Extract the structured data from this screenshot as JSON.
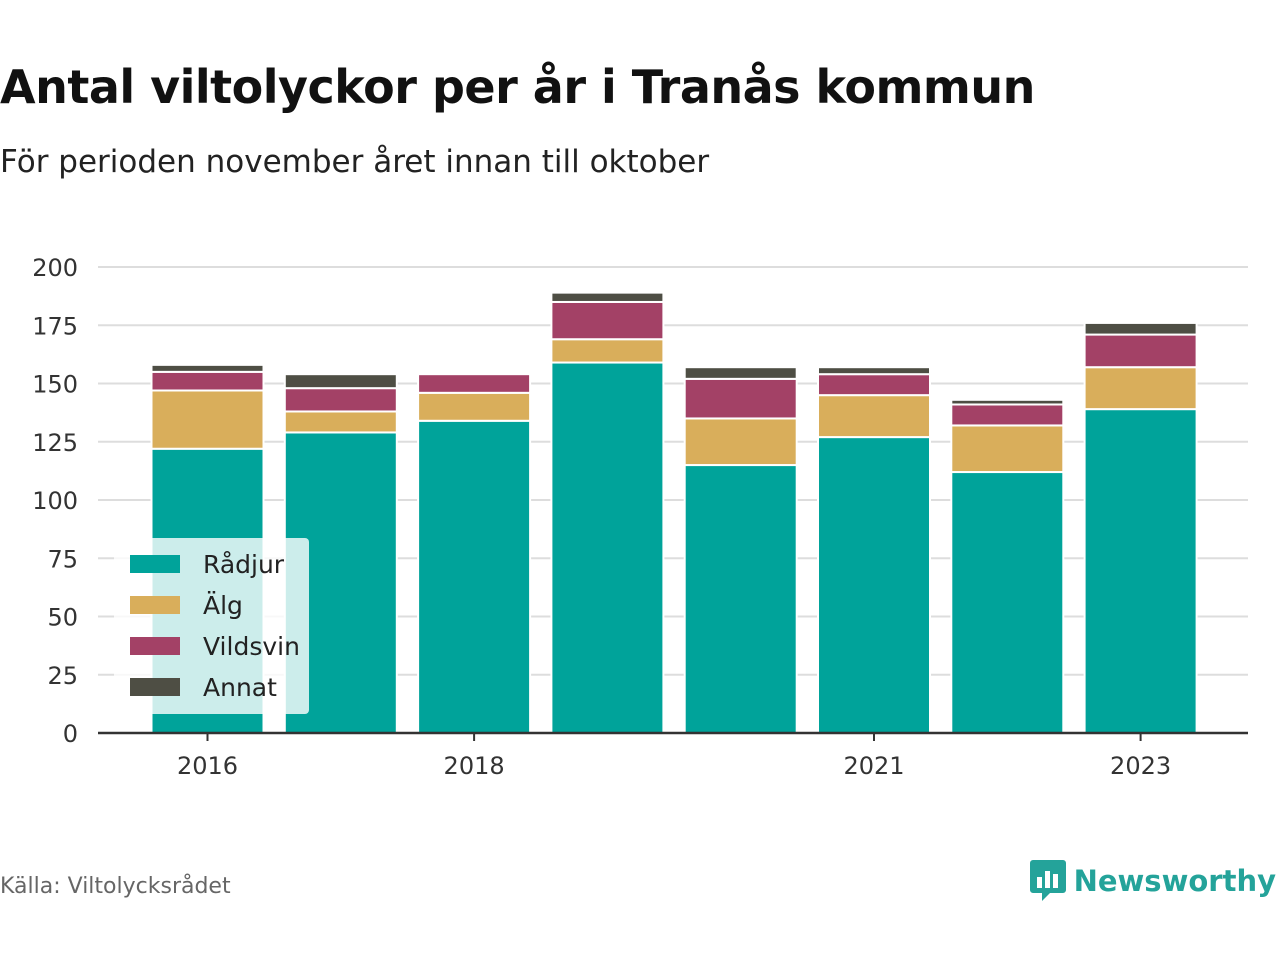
{
  "title": "Antal viltolyckor per år i Tranås kommun",
  "subtitle": "För perioden november året innan till oktober",
  "source": "Källa: Viltolycksrådet",
  "brand": "Newsworthy",
  "colors": {
    "radjur": "#00a39a",
    "alg": "#d9ae5b",
    "vildsvin": "#a34166",
    "annat": "#4e4e44",
    "grid": "#dddddd",
    "axis": "#333333",
    "brand": "#24a39a"
  },
  "chart_data": {
    "type": "bar",
    "stacked": true,
    "categories": [
      "2016",
      "2017",
      "2018",
      "2019",
      "2020",
      "2021",
      "2022",
      "2023"
    ],
    "tick_labels": [
      "2016",
      "",
      "2018",
      "",
      "",
      "2021",
      "",
      "2023"
    ],
    "series": [
      {
        "name": "Rådjur",
        "color": "#00a39a",
        "values": [
          122,
          129,
          134,
          159,
          115,
          127,
          112,
          139
        ]
      },
      {
        "name": "Älg",
        "color": "#d9ae5b",
        "values": [
          25,
          9,
          12,
          10,
          20,
          18,
          20,
          18
        ]
      },
      {
        "name": "Vildsvin",
        "color": "#a34166",
        "values": [
          8,
          10,
          8,
          16,
          17,
          9,
          9,
          14
        ]
      },
      {
        "name": "Annat",
        "color": "#4e4e44",
        "values": [
          3,
          6,
          0,
          4,
          5,
          3,
          2,
          5
        ]
      }
    ],
    "ylim": [
      0,
      200
    ],
    "yticks": [
      0,
      25,
      50,
      75,
      100,
      125,
      150,
      175,
      200
    ],
    "grid": true,
    "legend": "bottom-left",
    "xlabel": "",
    "ylabel": ""
  }
}
